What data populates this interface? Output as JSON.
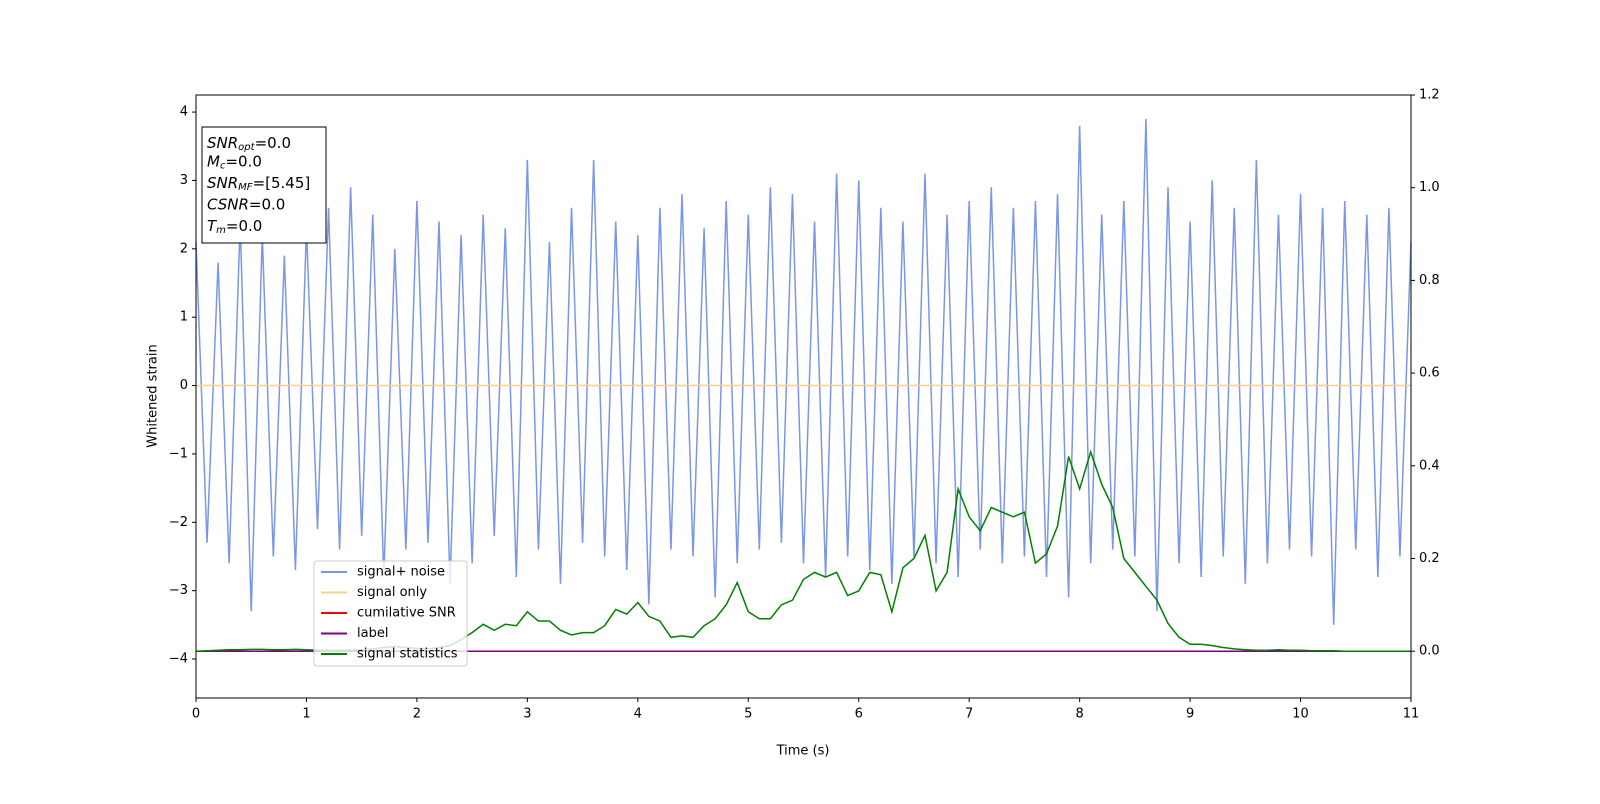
{
  "chart_data": {
    "type": "line",
    "xlabel": "Time (s)",
    "ylabel": "Whitened strain",
    "xlim": [
      0,
      11
    ],
    "xticks": [
      0,
      1,
      2,
      3,
      4,
      5,
      6,
      7,
      8,
      9,
      10,
      11
    ],
    "ylim": [
      -4.57,
      4.25
    ],
    "yticks": [
      {
        "value": -4,
        "label": "−4"
      },
      {
        "value": -3,
        "label": "−3"
      },
      {
        "value": -2,
        "label": "−2"
      },
      {
        "value": -1,
        "label": "−1"
      },
      0,
      1,
      2,
      3,
      4
    ],
    "y2lim": [
      -0.101,
      1.2
    ],
    "y2ticks": [
      {
        "value": 0,
        "label": "0.0"
      },
      {
        "value": 0.2,
        "label": "0.2"
      },
      {
        "value": 0.4,
        "label": "0.4"
      },
      {
        "value": 0.6,
        "label": "0.6"
      },
      {
        "value": 0.8,
        "label": "0.8"
      },
      {
        "value": 1.0,
        "label": "1.0"
      },
      {
        "value": 1.2,
        "label": "1.2"
      }
    ],
    "legend": "lower left",
    "annotations": [
      {
        "name": "SNR",
        "sub": "opt",
        "text": "=0.0"
      },
      {
        "name": "M",
        "sub": "c",
        "text": "=0.0"
      },
      {
        "name": "SNR",
        "sub": "MF",
        "text": "=[5.45]"
      },
      {
        "name": "CSNR",
        "text": "=0.0"
      },
      {
        "name": "T",
        "sub": "m",
        "text": "=0.0"
      }
    ],
    "x": [
      0,
      0.1,
      0.2,
      0.3,
      0.4,
      0.5,
      0.6,
      0.7,
      0.8,
      0.9,
      1,
      1.1,
      1.2,
      1.3,
      1.4,
      1.5,
      1.6,
      1.7,
      1.8,
      1.9,
      2,
      2.1,
      2.2,
      2.3,
      2.4,
      2.5,
      2.6,
      2.7,
      2.8,
      2.9,
      3,
      3.1,
      3.2,
      3.3,
      3.4,
      3.5,
      3.6,
      3.7,
      3.8,
      3.9,
      4,
      4.1,
      4.2,
      4.3,
      4.4,
      4.5,
      4.6,
      4.7,
      4.8,
      4.9,
      5,
      5.1,
      5.2,
      5.3,
      5.4,
      5.5,
      5.6,
      5.7,
      5.8,
      5.9,
      6,
      6.1,
      6.2,
      6.3,
      6.4,
      6.5,
      6.6,
      6.7,
      6.8,
      6.9,
      7,
      7.1,
      7.2,
      7.3,
      7.4,
      7.5,
      7.6,
      7.7,
      7.8,
      7.9,
      8,
      8.1,
      8.2,
      8.3,
      8.4,
      8.5,
      8.6,
      8.7,
      8.8,
      8.9,
      9,
      9.1,
      9.2,
      9.3,
      9.4,
      9.5,
      9.6,
      9.7,
      9.8,
      9.9,
      10,
      10.1,
      10.2,
      10.3,
      10.4,
      10.5,
      10.6,
      10.7,
      10.8,
      10.9,
      11
    ],
    "series": [
      {
        "name": "signal+ noise",
        "color": "#7b96e8",
        "axis": "y",
        "values": [
          2.1,
          -2.3,
          1.8,
          -2.6,
          2.4,
          -3.3,
          2.2,
          -2.5,
          1.9,
          -2.7,
          2.3,
          -2.1,
          2.6,
          -2.4,
          2.9,
          -2.2,
          2.5,
          -2.8,
          2.0,
          -2.4,
          2.7,
          -2.3,
          2.4,
          -2.9,
          2.2,
          -2.6,
          2.5,
          -2.2,
          2.3,
          -2.8,
          3.3,
          -2.4,
          2.1,
          -2.9,
          2.6,
          -2.3,
          3.3,
          -2.5,
          2.4,
          -2.7,
          2.2,
          -3.2,
          2.6,
          -2.4,
          2.8,
          -2.5,
          2.3,
          -3.1,
          2.7,
          -2.6,
          2.5,
          -2.4,
          2.9,
          -2.3,
          2.8,
          -2.6,
          2.4,
          -2.8,
          3.1,
          -2.5,
          3.0,
          -2.7,
          2.6,
          -2.9,
          2.4,
          -2.5,
          3.1,
          -2.6,
          2.5,
          -2.8,
          2.7,
          -2.4,
          2.9,
          -2.6,
          2.6,
          -2.5,
          2.7,
          -2.8,
          2.8,
          -3.1,
          3.8,
          -2.6,
          2.5,
          -2.4,
          2.7,
          -2.5,
          3.9,
          -3.3,
          2.9,
          -2.6,
          2.4,
          -2.8,
          3.0,
          -2.5,
          2.6,
          -2.9,
          3.3,
          -2.6,
          2.5,
          -2.4,
          2.8,
          -2.5,
          2.6,
          -3.5,
          2.7,
          -2.4,
          2.5,
          -2.8,
          2.6,
          -2.5,
          2.1
        ]
      },
      {
        "name": "signal only",
        "color": "#fdd08a",
        "axis": "y",
        "values": [
          0,
          0,
          0,
          0,
          0,
          0,
          0,
          0,
          0,
          0,
          0,
          0,
          0,
          0,
          0,
          0,
          0,
          0,
          0,
          0,
          0,
          0,
          0,
          0,
          0,
          0,
          0,
          0,
          0,
          0,
          0,
          0,
          0,
          0,
          0,
          0,
          0,
          0,
          0,
          0,
          0,
          0,
          0,
          0,
          0,
          0,
          0,
          0,
          0,
          0,
          0,
          0,
          0,
          0,
          0,
          0,
          0,
          0,
          0,
          0,
          0,
          0,
          0,
          0,
          0,
          0,
          0,
          0,
          0,
          0,
          0,
          0,
          0,
          0,
          0,
          0,
          0,
          0,
          0,
          0,
          0,
          0,
          0,
          0,
          0,
          0,
          0,
          0,
          0,
          0,
          0,
          0,
          0,
          0,
          0,
          0,
          0,
          0,
          0,
          0,
          0,
          0,
          0,
          0,
          0,
          0,
          0,
          0,
          0,
          0,
          0
        ]
      },
      {
        "name": "cumilative SNR",
        "color": "#ff0000",
        "axis": "y2",
        "values": [
          0,
          0,
          0,
          0,
          0,
          0,
          0,
          0,
          0,
          0,
          0,
          0,
          0,
          0,
          0,
          0,
          0,
          0,
          0,
          0,
          0,
          0,
          0,
          0,
          0,
          0,
          0,
          0,
          0,
          0,
          0,
          0,
          0,
          0,
          0,
          0,
          0,
          0,
          0,
          0,
          0,
          0,
          0,
          0,
          0,
          0,
          0,
          0,
          0,
          0,
          0,
          0,
          0,
          0,
          0,
          0,
          0,
          0,
          0,
          0,
          0,
          0,
          0,
          0,
          0,
          0,
          0,
          0,
          0,
          0,
          0,
          0,
          0,
          0,
          0,
          0,
          0,
          0,
          0,
          0,
          0,
          0,
          0,
          0,
          0,
          0,
          0,
          0,
          0,
          0,
          0,
          0,
          0,
          0,
          0,
          0,
          0,
          0,
          0,
          0,
          0,
          0,
          0,
          0,
          0,
          0,
          0,
          0,
          0,
          0,
          0
        ]
      },
      {
        "name": "label",
        "color": "#800080",
        "axis": "y2",
        "values": [
          0,
          0,
          0,
          0,
          0,
          0,
          0,
          0,
          0,
          0,
          0,
          0,
          0,
          0,
          0,
          0,
          0,
          0,
          0,
          0,
          0,
          0,
          0,
          0,
          0,
          0,
          0,
          0,
          0,
          0,
          0,
          0,
          0,
          0,
          0,
          0,
          0,
          0,
          0,
          0,
          0,
          0,
          0,
          0,
          0,
          0,
          0,
          0,
          0,
          0,
          0,
          0,
          0,
          0,
          0,
          0,
          0,
          0,
          0,
          0,
          0,
          0,
          0,
          0,
          0,
          0,
          0,
          0,
          0,
          0,
          0,
          0,
          0,
          0,
          0,
          0,
          0,
          0,
          0,
          0,
          0,
          0,
          0,
          0,
          0,
          0,
          0,
          0,
          0,
          0,
          0,
          0,
          0,
          0,
          0,
          0,
          0,
          0,
          0,
          0,
          0,
          0,
          0,
          0,
          0,
          0,
          0,
          0,
          0,
          0,
          0
        ]
      },
      {
        "name": "signal statistics",
        "color": "#008000",
        "axis": "y2",
        "values": [
          0,
          0.001,
          0.002,
          0.003,
          0.003,
          0.004,
          0.004,
          0.003,
          0.003,
          0.004,
          0.003,
          0.002,
          0.002,
          0.002,
          0.002,
          0.003,
          0.005,
          0.008,
          0.01,
          0.008,
          0.006,
          0.005,
          0.008,
          0.012,
          0.025,
          0.04,
          0.058,
          0.045,
          0.058,
          0.055,
          0.085,
          0.065,
          0.065,
          0.045,
          0.035,
          0.04,
          0.04,
          0.055,
          0.09,
          0.08,
          0.105,
          0.075,
          0.065,
          0.03,
          0.033,
          0.03,
          0.055,
          0.07,
          0.1,
          0.148,
          0.085,
          0.07,
          0.07,
          0.1,
          0.11,
          0.155,
          0.17,
          0.16,
          0.17,
          0.12,
          0.13,
          0.17,
          0.165,
          0.085,
          0.18,
          0.2,
          0.25,
          0.13,
          0.17,
          0.35,
          0.29,
          0.26,
          0.31,
          0.3,
          0.29,
          0.3,
          0.19,
          0.21,
          0.27,
          0.42,
          0.35,
          0.43,
          0.36,
          0.31,
          0.2,
          0.17,
          0.14,
          0.11,
          0.06,
          0.03,
          0.015,
          0.015,
          0.012,
          0.008,
          0.005,
          0.003,
          0.002,
          0.002,
          0.003,
          0.002,
          0.002,
          0.001,
          0.001,
          0.001,
          0,
          0,
          0,
          0,
          0,
          0,
          0
        ]
      }
    ]
  }
}
